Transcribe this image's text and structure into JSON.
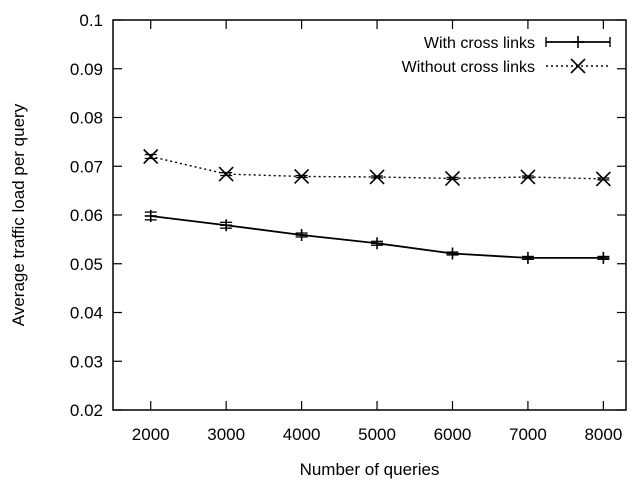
{
  "chart_data": {
    "type": "line",
    "title": "",
    "xlabel": "Number of queries",
    "ylabel": "Average traffic load per query",
    "x": [
      2000,
      3000,
      4000,
      5000,
      6000,
      7000,
      8000
    ],
    "xlim": [
      1500,
      8300
    ],
    "ylim": [
      0.02,
      0.1
    ],
    "xticks": [
      2000,
      3000,
      4000,
      5000,
      6000,
      7000,
      8000
    ],
    "xtick_labels": [
      "2000",
      "3000",
      "4000",
      "5000",
      "6000",
      "7000",
      "8000"
    ],
    "yticks": [
      0.02,
      0.03,
      0.04,
      0.05,
      0.06,
      0.07,
      0.08,
      0.09,
      0.1
    ],
    "ytick_labels": [
      "0.02",
      "0.03",
      "0.04",
      "0.05",
      "0.06",
      "0.07",
      "0.08",
      "0.09",
      "0.1"
    ],
    "grid": false,
    "legend_position": "top-right",
    "series": [
      {
        "name": "With cross links",
        "values": [
          0.0598,
          0.0579,
          0.0559,
          0.0542,
          0.0521,
          0.0512,
          0.0512
        ],
        "error": [
          0.0008,
          0.0006,
          0.0004,
          0.0004,
          0.0003,
          0.0003,
          0.0003
        ],
        "line_style": "solid",
        "marker": "plus",
        "color": "#000000"
      },
      {
        "name": "Without cross links",
        "values": [
          0.072,
          0.0684,
          0.0679,
          0.0678,
          0.0675,
          0.0678,
          0.0674
        ],
        "error": [
          0.0004,
          0.0003,
          0.0002,
          0.0002,
          0.0002,
          0.0002,
          0.0002
        ],
        "line_style": "dotted",
        "marker": "x",
        "color": "#000000"
      }
    ]
  }
}
